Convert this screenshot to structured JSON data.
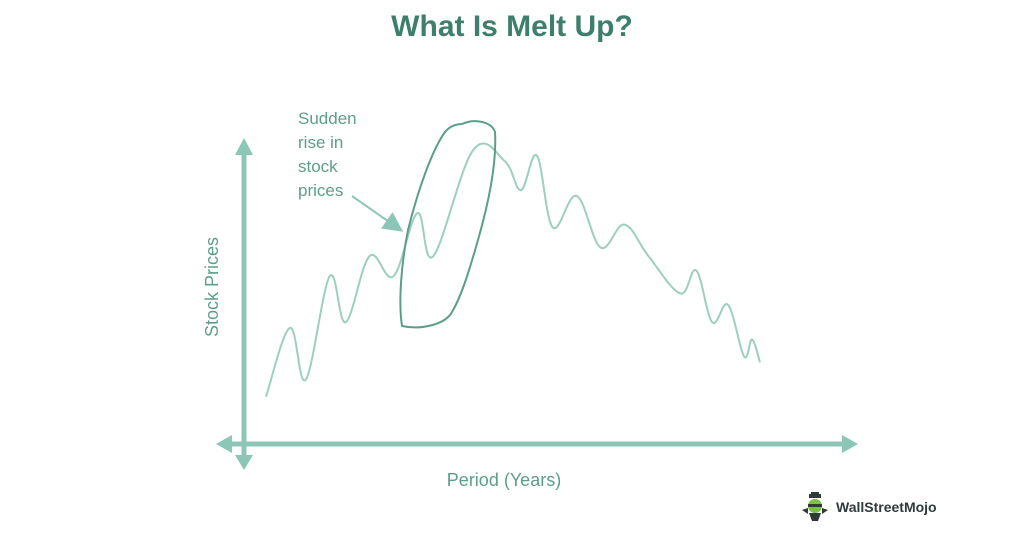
{
  "title": "What Is Melt Up?",
  "colors": {
    "title": "#3d7f6c",
    "line": "#9ccfbf",
    "axis": "#8cc6b6",
    "text": "#5b9e8b"
  },
  "logo": {
    "text": "WallStreetMojo",
    "icon": "mojo-mascot-icon"
  },
  "chart_data": {
    "type": "line",
    "title": "What Is Melt Up?",
    "xlabel": "Period (Years)",
    "ylabel": "Stock Prices",
    "grid": false,
    "legend": "none",
    "annotation": {
      "lines": [
        "Sudden",
        "rise in",
        "stock",
        "prices"
      ]
    },
    "series": [
      {
        "values": [
          [
            0,
            6
          ],
          [
            3,
            30
          ],
          [
            5,
            12
          ],
          [
            8,
            48
          ],
          [
            10,
            32
          ],
          [
            13,
            55
          ],
          [
            16,
            48
          ],
          [
            19,
            70
          ],
          [
            21,
            55
          ],
          [
            26,
            92
          ],
          [
            30,
            88
          ],
          [
            32,
            78
          ],
          [
            34,
            90
          ],
          [
            36,
            65
          ],
          [
            39,
            76
          ],
          [
            42,
            58
          ],
          [
            45,
            66
          ],
          [
            48,
            55
          ],
          [
            52,
            42
          ],
          [
            54,
            50
          ],
          [
            56,
            32
          ],
          [
            58,
            38
          ],
          [
            60,
            20
          ],
          [
            61,
            26
          ],
          [
            62,
            18
          ]
        ]
      }
    ],
    "highlight_range": [
      21,
      30
    ]
  }
}
